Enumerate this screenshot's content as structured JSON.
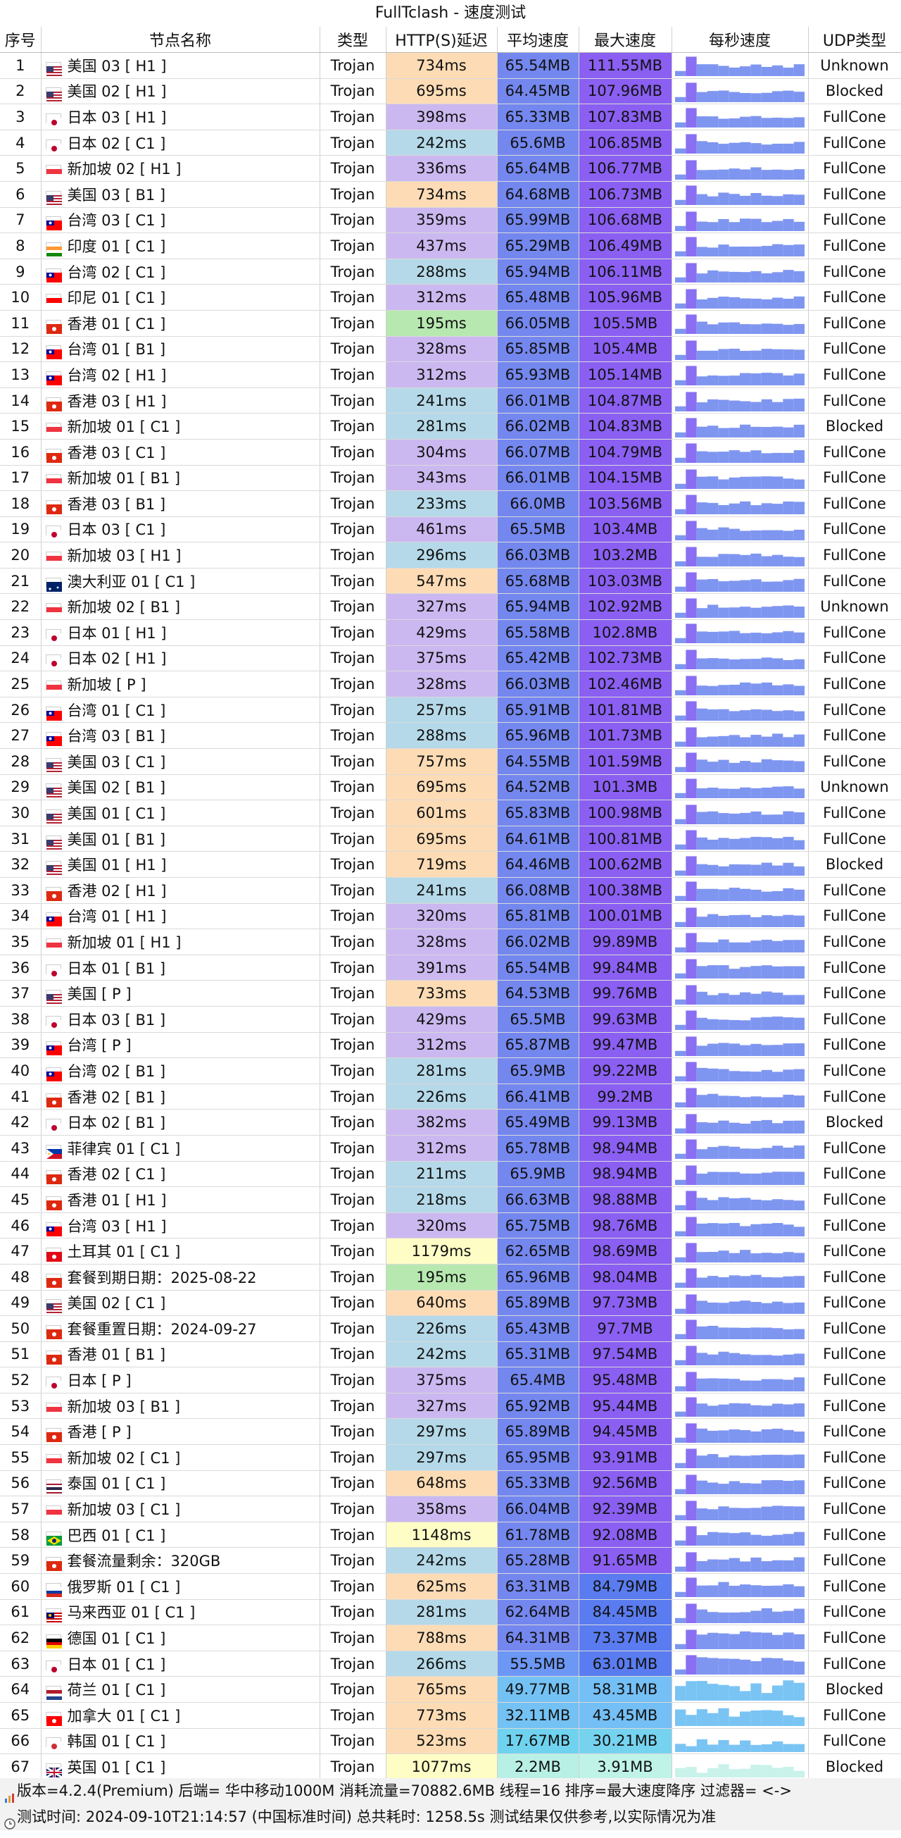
{
  "title": "FullTclash - 速度测试",
  "headers": [
    "序号",
    "节点名称",
    "类型",
    "HTTP(S)延迟",
    "平均速度",
    "最大速度",
    "每秒速度",
    "UDP类型"
  ],
  "footer_line1": "版本=4.2.4(Premium)  后端= 华中移动1000M  消耗流量=70882.6MB  线程=16  排序=最大速度降序  过滤器= <->",
  "footer_line2": "测试时间: 2024-09-10T21:14:57 (中国标准时间) 总共耗时: 1258.5s 测试结果仅供参考,以实际情况为准",
  "flag_colors": {
    "us": [
      "#b22234",
      "#fff",
      "#3c3b6e"
    ],
    "jp": [
      "#fff",
      "#bc002d"
    ],
    "sg": [
      "#ef3340",
      "#fff"
    ],
    "tw": [
      "#fe0000",
      "#000095"
    ],
    "in": [
      "#ff9933",
      "#fff",
      "#138808"
    ],
    "id": [
      "#ff0000",
      "#fff"
    ],
    "hk": [
      "#de2910",
      "#fff"
    ],
    "au": [
      "#012169",
      "#fff"
    ],
    "ph": [
      "#0038a8",
      "#ce1126",
      "#fcd116"
    ],
    "tr": [
      "#e30a17",
      "#fff"
    ],
    "th": [
      "#a51931",
      "#fff",
      "#2d2a4a"
    ],
    "br": [
      "#009c3b",
      "#ffdf00"
    ],
    "ru": [
      "#fff",
      "#0039a6",
      "#d52b1e"
    ],
    "my": [
      "#cc0001",
      "#fff",
      "#010066"
    ],
    "de": [
      "#000",
      "#dd0000",
      "#ffce00"
    ],
    "nl": [
      "#ae1c28",
      "#fff",
      "#21468b"
    ],
    "ca": [
      "#ff0000",
      "#fff"
    ],
    "kr": [
      "#fff",
      "#cd2e3a",
      "#0047a0"
    ],
    "gb": [
      "#012169",
      "#fff",
      "#c8102e"
    ]
  },
  "rows": [
    {
      "n": 1,
      "flag": "us",
      "name": "美国 03 [ H1 ]",
      "type": "Trojan",
      "delay": "734ms",
      "avg": "65.54MB",
      "max": "111.55MB",
      "udp": "Unknown"
    },
    {
      "n": 2,
      "flag": "us",
      "name": "美国 02 [ H1 ]",
      "type": "Trojan",
      "delay": "695ms",
      "avg": "64.45MB",
      "max": "107.96MB",
      "udp": "Blocked"
    },
    {
      "n": 3,
      "flag": "jp",
      "name": "日本 03 [ H1 ]",
      "type": "Trojan",
      "delay": "398ms",
      "avg": "65.33MB",
      "max": "107.83MB",
      "udp": "FullCone"
    },
    {
      "n": 4,
      "flag": "jp",
      "name": "日本 02 [ C1 ]",
      "type": "Trojan",
      "delay": "242ms",
      "avg": "65.6MB",
      "max": "106.85MB",
      "udp": "FullCone"
    },
    {
      "n": 5,
      "flag": "sg",
      "name": "新加坡 02 [ H1 ]",
      "type": "Trojan",
      "delay": "336ms",
      "avg": "65.64MB",
      "max": "106.77MB",
      "udp": "FullCone"
    },
    {
      "n": 6,
      "flag": "us",
      "name": "美国 03 [ B1 ]",
      "type": "Trojan",
      "delay": "734ms",
      "avg": "64.68MB",
      "max": "106.73MB",
      "udp": "FullCone"
    },
    {
      "n": 7,
      "flag": "tw",
      "name": "台湾 03 [ C1 ]",
      "type": "Trojan",
      "delay": "359ms",
      "avg": "65.99MB",
      "max": "106.68MB",
      "udp": "FullCone"
    },
    {
      "n": 8,
      "flag": "in",
      "name": "印度 01 [ C1 ]",
      "type": "Trojan",
      "delay": "437ms",
      "avg": "65.29MB",
      "max": "106.49MB",
      "udp": "FullCone"
    },
    {
      "n": 9,
      "flag": "tw",
      "name": "台湾 02 [ C1 ]",
      "type": "Trojan",
      "delay": "288ms",
      "avg": "65.94MB",
      "max": "106.11MB",
      "udp": "FullCone"
    },
    {
      "n": 10,
      "flag": "id",
      "name": "印尼 01 [ C1 ]",
      "type": "Trojan",
      "delay": "312ms",
      "avg": "65.48MB",
      "max": "105.96MB",
      "udp": "FullCone"
    },
    {
      "n": 11,
      "flag": "hk",
      "name": "香港 01 [ C1 ]",
      "type": "Trojan",
      "delay": "195ms",
      "avg": "66.05MB",
      "max": "105.5MB",
      "udp": "FullCone"
    },
    {
      "n": 12,
      "flag": "tw",
      "name": "台湾 01 [ B1 ]",
      "type": "Trojan",
      "delay": "328ms",
      "avg": "65.85MB",
      "max": "105.4MB",
      "udp": "FullCone"
    },
    {
      "n": 13,
      "flag": "tw",
      "name": "台湾 02 [ H1 ]",
      "type": "Trojan",
      "delay": "312ms",
      "avg": "65.93MB",
      "max": "105.14MB",
      "udp": "FullCone"
    },
    {
      "n": 14,
      "flag": "hk",
      "name": "香港 03 [ H1 ]",
      "type": "Trojan",
      "delay": "241ms",
      "avg": "66.01MB",
      "max": "104.87MB",
      "udp": "FullCone"
    },
    {
      "n": 15,
      "flag": "sg",
      "name": "新加坡 01 [ C1 ]",
      "type": "Trojan",
      "delay": "281ms",
      "avg": "66.02MB",
      "max": "104.83MB",
      "udp": "Blocked"
    },
    {
      "n": 16,
      "flag": "hk",
      "name": "香港 03 [ C1 ]",
      "type": "Trojan",
      "delay": "304ms",
      "avg": "66.07MB",
      "max": "104.79MB",
      "udp": "FullCone"
    },
    {
      "n": 17,
      "flag": "sg",
      "name": "新加坡 01 [ B1 ]",
      "type": "Trojan",
      "delay": "343ms",
      "avg": "66.01MB",
      "max": "104.15MB",
      "udp": "FullCone"
    },
    {
      "n": 18,
      "flag": "hk",
      "name": "香港 03 [ B1 ]",
      "type": "Trojan",
      "delay": "233ms",
      "avg": "66.0MB",
      "max": "103.56MB",
      "udp": "FullCone"
    },
    {
      "n": 19,
      "flag": "jp",
      "name": "日本 03 [ C1 ]",
      "type": "Trojan",
      "delay": "461ms",
      "avg": "65.5MB",
      "max": "103.4MB",
      "udp": "FullCone"
    },
    {
      "n": 20,
      "flag": "sg",
      "name": "新加坡 03 [ H1 ]",
      "type": "Trojan",
      "delay": "296ms",
      "avg": "66.03MB",
      "max": "103.2MB",
      "udp": "FullCone"
    },
    {
      "n": 21,
      "flag": "au",
      "name": "澳大利亚 01 [ C1 ]",
      "type": "Trojan",
      "delay": "547ms",
      "avg": "65.68MB",
      "max": "103.03MB",
      "udp": "FullCone"
    },
    {
      "n": 22,
      "flag": "sg",
      "name": "新加坡 02 [ B1 ]",
      "type": "Trojan",
      "delay": "327ms",
      "avg": "65.94MB",
      "max": "102.92MB",
      "udp": "Unknown"
    },
    {
      "n": 23,
      "flag": "jp",
      "name": "日本 01 [ H1 ]",
      "type": "Trojan",
      "delay": "429ms",
      "avg": "65.58MB",
      "max": "102.8MB",
      "udp": "FullCone"
    },
    {
      "n": 24,
      "flag": "jp",
      "name": "日本 02 [ H1 ]",
      "type": "Trojan",
      "delay": "375ms",
      "avg": "65.42MB",
      "max": "102.73MB",
      "udp": "FullCone"
    },
    {
      "n": 25,
      "flag": "sg",
      "name": "新加坡 [ P ]",
      "type": "Trojan",
      "delay": "328ms",
      "avg": "66.03MB",
      "max": "102.46MB",
      "udp": "FullCone"
    },
    {
      "n": 26,
      "flag": "tw",
      "name": "台湾 01 [ C1 ]",
      "type": "Trojan",
      "delay": "257ms",
      "avg": "65.91MB",
      "max": "101.81MB",
      "udp": "FullCone"
    },
    {
      "n": 27,
      "flag": "tw",
      "name": "台湾 03 [ B1 ]",
      "type": "Trojan",
      "delay": "288ms",
      "avg": "65.96MB",
      "max": "101.73MB",
      "udp": "FullCone"
    },
    {
      "n": 28,
      "flag": "us",
      "name": "美国 03 [ C1 ]",
      "type": "Trojan",
      "delay": "757ms",
      "avg": "64.55MB",
      "max": "101.59MB",
      "udp": "FullCone"
    },
    {
      "n": 29,
      "flag": "us",
      "name": "美国 02 [ B1 ]",
      "type": "Trojan",
      "delay": "695ms",
      "avg": "64.52MB",
      "max": "101.3MB",
      "udp": "Unknown"
    },
    {
      "n": 30,
      "flag": "us",
      "name": "美国 01 [ C1 ]",
      "type": "Trojan",
      "delay": "601ms",
      "avg": "65.83MB",
      "max": "100.98MB",
      "udp": "FullCone"
    },
    {
      "n": 31,
      "flag": "us",
      "name": "美国 01 [ B1 ]",
      "type": "Trojan",
      "delay": "695ms",
      "avg": "64.61MB",
      "max": "100.81MB",
      "udp": "FullCone"
    },
    {
      "n": 32,
      "flag": "us",
      "name": "美国 01 [ H1 ]",
      "type": "Trojan",
      "delay": "719ms",
      "avg": "64.46MB",
      "max": "100.62MB",
      "udp": "Blocked"
    },
    {
      "n": 33,
      "flag": "hk",
      "name": "香港 02 [ H1 ]",
      "type": "Trojan",
      "delay": "241ms",
      "avg": "66.08MB",
      "max": "100.38MB",
      "udp": "FullCone"
    },
    {
      "n": 34,
      "flag": "tw",
      "name": "台湾 01 [ H1 ]",
      "type": "Trojan",
      "delay": "320ms",
      "avg": "65.81MB",
      "max": "100.01MB",
      "udp": "FullCone"
    },
    {
      "n": 35,
      "flag": "sg",
      "name": "新加坡 01 [ H1 ]",
      "type": "Trojan",
      "delay": "328ms",
      "avg": "66.02MB",
      "max": "99.89MB",
      "udp": "FullCone"
    },
    {
      "n": 36,
      "flag": "jp",
      "name": "日本 01 [ B1 ]",
      "type": "Trojan",
      "delay": "391ms",
      "avg": "65.54MB",
      "max": "99.84MB",
      "udp": "FullCone"
    },
    {
      "n": 37,
      "flag": "us",
      "name": "美国 [ P ]",
      "type": "Trojan",
      "delay": "733ms",
      "avg": "64.53MB",
      "max": "99.76MB",
      "udp": "FullCone"
    },
    {
      "n": 38,
      "flag": "jp",
      "name": "日本 03 [ B1 ]",
      "type": "Trojan",
      "delay": "429ms",
      "avg": "65.5MB",
      "max": "99.63MB",
      "udp": "FullCone"
    },
    {
      "n": 39,
      "flag": "tw",
      "name": "台湾 [ P ]",
      "type": "Trojan",
      "delay": "312ms",
      "avg": "65.87MB",
      "max": "99.47MB",
      "udp": "FullCone"
    },
    {
      "n": 40,
      "flag": "tw",
      "name": "台湾 02 [ B1 ]",
      "type": "Trojan",
      "delay": "281ms",
      "avg": "65.9MB",
      "max": "99.22MB",
      "udp": "FullCone"
    },
    {
      "n": 41,
      "flag": "hk",
      "name": "香港 02 [ B1 ]",
      "type": "Trojan",
      "delay": "226ms",
      "avg": "66.41MB",
      "max": "99.2MB",
      "udp": "FullCone"
    },
    {
      "n": 42,
      "flag": "jp",
      "name": "日本 02 [ B1 ]",
      "type": "Trojan",
      "delay": "382ms",
      "avg": "65.49MB",
      "max": "99.13MB",
      "udp": "Blocked"
    },
    {
      "n": 43,
      "flag": "ph",
      "name": "菲律宾 01 [ C1 ]",
      "type": "Trojan",
      "delay": "312ms",
      "avg": "65.78MB",
      "max": "98.94MB",
      "udp": "FullCone"
    },
    {
      "n": 44,
      "flag": "hk",
      "name": "香港 02 [ C1 ]",
      "type": "Trojan",
      "delay": "211ms",
      "avg": "65.9MB",
      "max": "98.94MB",
      "udp": "FullCone"
    },
    {
      "n": 45,
      "flag": "hk",
      "name": "香港 01 [ H1 ]",
      "type": "Trojan",
      "delay": "218ms",
      "avg": "66.63MB",
      "max": "98.88MB",
      "udp": "FullCone"
    },
    {
      "n": 46,
      "flag": "tw",
      "name": "台湾 03 [ H1 ]",
      "type": "Trojan",
      "delay": "320ms",
      "avg": "65.75MB",
      "max": "98.76MB",
      "udp": "FullCone"
    },
    {
      "n": 47,
      "flag": "tr",
      "name": "土耳其 01 [ C1 ]",
      "type": "Trojan",
      "delay": "1179ms",
      "avg": "62.65MB",
      "max": "98.69MB",
      "udp": "FullCone"
    },
    {
      "n": 48,
      "flag": "hk",
      "name": "套餐到期日期：2025-08-22",
      "type": "Trojan",
      "delay": "195ms",
      "avg": "65.96MB",
      "max": "98.04MB",
      "udp": "FullCone"
    },
    {
      "n": 49,
      "flag": "us",
      "name": "美国 02 [ C1 ]",
      "type": "Trojan",
      "delay": "640ms",
      "avg": "65.89MB",
      "max": "97.73MB",
      "udp": "FullCone"
    },
    {
      "n": 50,
      "flag": "hk",
      "name": "套餐重置日期：2024-09-27",
      "type": "Trojan",
      "delay": "226ms",
      "avg": "65.43MB",
      "max": "97.7MB",
      "udp": "FullCone"
    },
    {
      "n": 51,
      "flag": "hk",
      "name": "香港 01 [ B1 ]",
      "type": "Trojan",
      "delay": "242ms",
      "avg": "65.31MB",
      "max": "97.54MB",
      "udp": "FullCone"
    },
    {
      "n": 52,
      "flag": "jp",
      "name": "日本 [ P ]",
      "type": "Trojan",
      "delay": "375ms",
      "avg": "65.4MB",
      "max": "95.48MB",
      "udp": "FullCone"
    },
    {
      "n": 53,
      "flag": "sg",
      "name": "新加坡 03 [ B1 ]",
      "type": "Trojan",
      "delay": "327ms",
      "avg": "65.92MB",
      "max": "95.44MB",
      "udp": "FullCone"
    },
    {
      "n": 54,
      "flag": "hk",
      "name": "香港 [ P ]",
      "type": "Trojan",
      "delay": "297ms",
      "avg": "65.89MB",
      "max": "94.45MB",
      "udp": "FullCone"
    },
    {
      "n": 55,
      "flag": "sg",
      "name": "新加坡 02 [ C1 ]",
      "type": "Trojan",
      "delay": "297ms",
      "avg": "65.95MB",
      "max": "93.91MB",
      "udp": "FullCone"
    },
    {
      "n": 56,
      "flag": "th",
      "name": "泰国 01 [ C1 ]",
      "type": "Trojan",
      "delay": "648ms",
      "avg": "65.33MB",
      "max": "92.56MB",
      "udp": "FullCone"
    },
    {
      "n": 57,
      "flag": "sg",
      "name": "新加坡 03 [ C1 ]",
      "type": "Trojan",
      "delay": "358ms",
      "avg": "66.04MB",
      "max": "92.39MB",
      "udp": "FullCone"
    },
    {
      "n": 58,
      "flag": "br",
      "name": "巴西 01 [ C1 ]",
      "type": "Trojan",
      "delay": "1148ms",
      "avg": "61.78MB",
      "max": "92.08MB",
      "udp": "FullCone"
    },
    {
      "n": 59,
      "flag": "hk",
      "name": "套餐流量剩余：320GB",
      "type": "Trojan",
      "delay": "242ms",
      "avg": "65.28MB",
      "max": "91.65MB",
      "udp": "FullCone"
    },
    {
      "n": 60,
      "flag": "ru",
      "name": "俄罗斯 01 [ C1 ]",
      "type": "Trojan",
      "delay": "625ms",
      "avg": "63.31MB",
      "max": "84.79MB",
      "udp": "FullCone"
    },
    {
      "n": 61,
      "flag": "my",
      "name": "马来西亚 01 [ C1 ]",
      "type": "Trojan",
      "delay": "281ms",
      "avg": "62.64MB",
      "max": "84.45MB",
      "udp": "FullCone"
    },
    {
      "n": 62,
      "flag": "de",
      "name": "德国 01 [ C1 ]",
      "type": "Trojan",
      "delay": "788ms",
      "avg": "64.31MB",
      "max": "73.37MB",
      "udp": "FullCone"
    },
    {
      "n": 63,
      "flag": "jp",
      "name": "日本 01 [ C1 ]",
      "type": "Trojan",
      "delay": "266ms",
      "avg": "55.5MB",
      "max": "63.01MB",
      "udp": "FullCone"
    },
    {
      "n": 64,
      "flag": "nl",
      "name": "荷兰 01 [ C1 ]",
      "type": "Trojan",
      "delay": "765ms",
      "avg": "49.77MB",
      "max": "58.31MB",
      "udp": "Blocked"
    },
    {
      "n": 65,
      "flag": "ca",
      "name": "加拿大 01 [ C1 ]",
      "type": "Trojan",
      "delay": "773ms",
      "avg": "32.11MB",
      "max": "43.45MB",
      "udp": "FullCone"
    },
    {
      "n": 66,
      "flag": "kr",
      "name": "韩国 01 [ C1 ]",
      "type": "Trojan",
      "delay": "523ms",
      "avg": "17.67MB",
      "max": "30.21MB",
      "udp": "FullCone"
    },
    {
      "n": 67,
      "flag": "gb",
      "name": "英国 01 [ C1 ]",
      "type": "Trojan",
      "delay": "1077ms",
      "avg": "2.2MB",
      "max": "3.91MB",
      "udp": "Blocked"
    }
  ]
}
